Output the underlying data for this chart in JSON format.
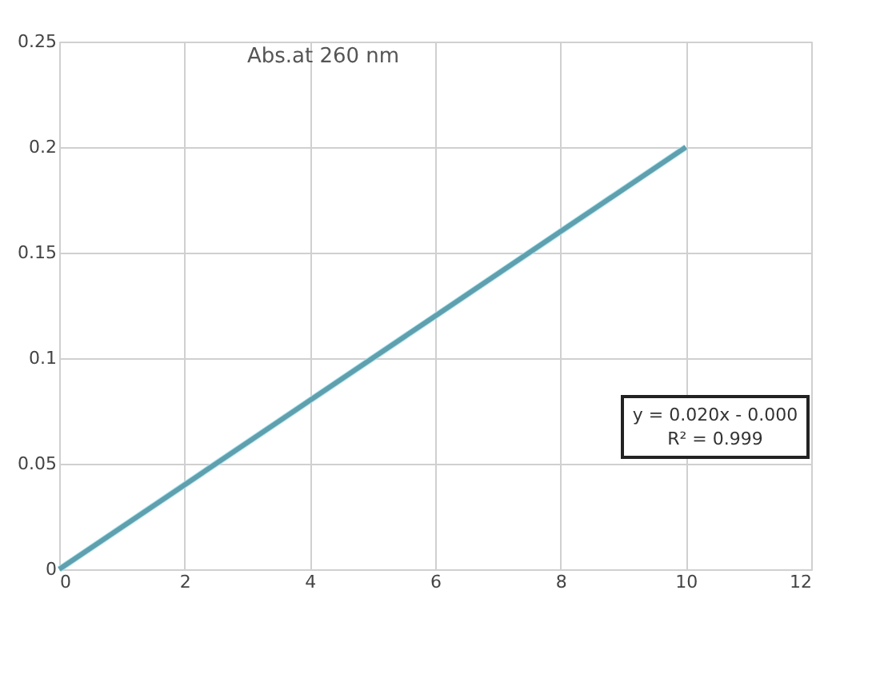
{
  "chart_data": {
    "type": "line",
    "title": "Abs.at 260 nm",
    "xlim": [
      0,
      12
    ],
    "xticks": [
      0,
      2,
      4,
      6,
      8,
      10,
      12
    ],
    "ylim": [
      0,
      0.25
    ],
    "yticks": [
      0,
      0.05,
      0.1,
      0.15,
      0.2,
      0.25
    ],
    "grid": true,
    "marker": "none",
    "line_style": "solid",
    "series": [
      {
        "color": "#5f9fae",
        "x": [
          0,
          2,
          4,
          6,
          8,
          10
        ],
        "values": [
          0,
          0.04,
          0.08,
          0.12,
          0.16,
          0.2
        ]
      },
      {
        "type": "line",
        "color": "#a9e3ee",
        "x": [
          0,
          10
        ],
        "values": [
          0,
          0.2
        ]
      }
    ],
    "annotations": [
      "y = 0.020x - 0.000",
      "R² = 0.999"
    ]
  }
}
